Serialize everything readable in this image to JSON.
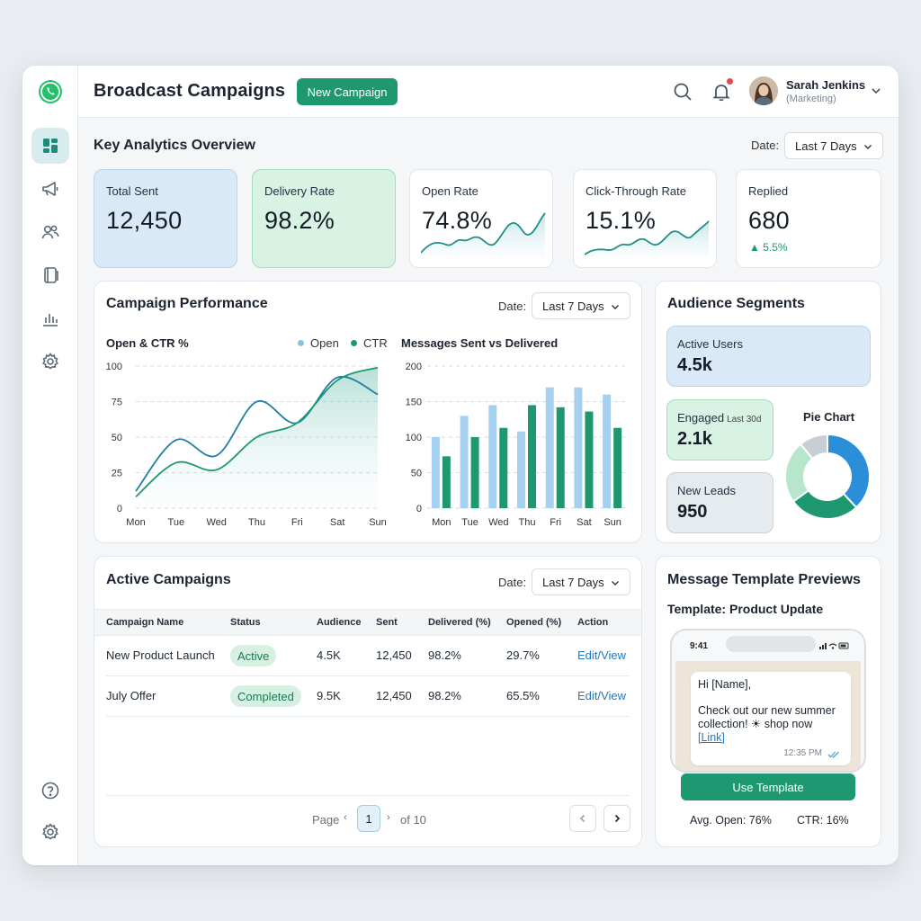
{
  "header": {
    "title": "Broadcast Campaigns",
    "new_campaign_label": "New Campaign",
    "user_name": "Sarah Jenkins",
    "user_role": "(Marketing)"
  },
  "sidebar": {
    "items": [
      {
        "icon": "dashboard-icon",
        "active": true
      },
      {
        "icon": "megaphone-icon",
        "active": false
      },
      {
        "icon": "users-icon",
        "active": false
      },
      {
        "icon": "book-icon",
        "active": false
      },
      {
        "icon": "bar-chart-icon",
        "active": false
      },
      {
        "icon": "gear-icon",
        "active": false
      }
    ],
    "bottom": [
      {
        "icon": "help-icon"
      },
      {
        "icon": "settings-icon"
      }
    ]
  },
  "overview": {
    "title": "Key Analytics Overview",
    "date_label": "Date:",
    "date_value": "Last 7 Days",
    "kpis": [
      {
        "label": "Total Sent",
        "value": "12,450"
      },
      {
        "label": "Delivery Rate",
        "value": "98.2%"
      },
      {
        "label": "Open Rate",
        "value": "74.8%"
      },
      {
        "label": "Click-Through Rate",
        "value": "15.1%"
      },
      {
        "label": "Replied",
        "value": "680",
        "delta": "▲ 5.5%"
      }
    ]
  },
  "performance": {
    "title": "Campaign Performance",
    "date_label": "Date:",
    "date_value": "Last 7 Days",
    "line_title": "Open & CTR %",
    "bar_title": "Messages Sent vs Delivered",
    "legend_open": "Open",
    "legend_ctr": "CTR"
  },
  "chart_data": [
    {
      "type": "line",
      "title": "Open & CTR %",
      "x": [
        "Mon",
        "Tue",
        "Wed",
        "Thu",
        "Fri",
        "Sat",
        "Sun"
      ],
      "ylim": [
        0,
        100
      ],
      "yticks": [
        0,
        25,
        50,
        75,
        100
      ],
      "series": [
        {
          "name": "Open",
          "values": [
            12,
            48,
            37,
            75,
            60,
            92,
            80
          ]
        },
        {
          "name": "CTR",
          "values": [
            8,
            32,
            27,
            50,
            60,
            90,
            99
          ]
        }
      ]
    },
    {
      "type": "bar",
      "title": "Messages Sent vs Delivered",
      "categories": [
        "Mon",
        "Tue",
        "Wed",
        "Thu",
        "Fri",
        "Sat",
        "Sun"
      ],
      "ylim": [
        0,
        200
      ],
      "yticks": [
        0,
        50,
        100,
        150,
        200
      ],
      "series": [
        {
          "values": [
            100,
            130,
            145,
            108,
            170,
            170,
            160
          ]
        },
        {
          "values": [
            73,
            100,
            113,
            145,
            142,
            136,
            113
          ]
        }
      ]
    },
    {
      "type": "pie",
      "title": "Pie Chart",
      "values": [
        38,
        27,
        24,
        11
      ]
    }
  ],
  "audience": {
    "title": "Audience Segments",
    "active_label": "Active Users",
    "active_value": "4.5k",
    "engaged_label": "Engaged",
    "engaged_note": "Last 30d",
    "engaged_value": "2.1k",
    "leads_label": "New Leads",
    "leads_value": "950",
    "pie_title": "Pie Chart"
  },
  "campaigns": {
    "title": "Active Campaigns",
    "date_label": "Date:",
    "date_value": "Last 7 Days",
    "columns": [
      "Campaign Name",
      "Status",
      "Audience",
      "Sent",
      "Delivered (%)",
      "Opened (%)",
      "Action"
    ],
    "rows": [
      {
        "name": "New Product Launch",
        "status": "Active",
        "audience": "4.5K",
        "sent": "12,450",
        "delivered": "98.2%",
        "opened": "29.7%",
        "action": "Edit/View"
      },
      {
        "name": "July Offer",
        "status": "Completed",
        "audience": "9.5K",
        "sent": "12,450",
        "delivered": "98.2%",
        "opened": "65.5%",
        "action": "Edit/View"
      }
    ],
    "pager": {
      "page_label": "Page",
      "current": "1",
      "of_label": "of 10"
    }
  },
  "templates": {
    "title": "Message Template Previews",
    "template_name": "Template: Product Update",
    "phone_time": "9:41",
    "greeting": "Hi [Name],",
    "body": "Check out our new summer collection! ☀ shop now",
    "link": "[Link]",
    "msg_time": "12:35 PM",
    "use_label": "Use Template",
    "avg_open": "Avg. Open: 76%",
    "ctr": "CTR: 16%"
  },
  "colors": {
    "brand_green": "#1e9870",
    "open_blue": "#8cc1e6",
    "ctr_green": "#1e9870",
    "link_blue": "#2278c0"
  }
}
